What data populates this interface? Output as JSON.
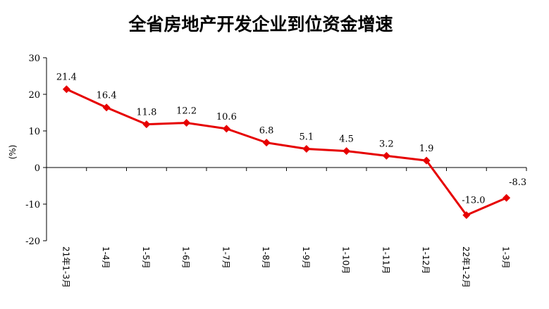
{
  "chart_data": {
    "type": "line",
    "title": "全省房地产开发企业到位资金增速",
    "ylabel": "(%)",
    "xlabel": "",
    "ylim": [
      -20,
      30
    ],
    "yticks": [
      30,
      20,
      10,
      0,
      -10,
      -20
    ],
    "grid": false,
    "legend": "none",
    "categories": [
      "21年1-3月",
      "1-4月",
      "1-5月",
      "1-6月",
      "1-7月",
      "1-8月",
      "1-9月",
      "1-10月",
      "1-11月",
      "1-12月",
      "22年1-2月",
      "1-3月"
    ],
    "values": [
      21.4,
      16.4,
      11.8,
      12.2,
      10.6,
      6.8,
      5.1,
      4.5,
      3.2,
      1.9,
      -13.0,
      -8.3
    ],
    "data_labels": [
      "21.4",
      "16.4",
      "11.8",
      "12.2",
      "10.6",
      "6.8",
      "5.1",
      "4.5",
      "3.2",
      "1.9",
      "-13.0",
      "-8.3"
    ],
    "line_color": "#e60000",
    "marker": "diamond"
  }
}
